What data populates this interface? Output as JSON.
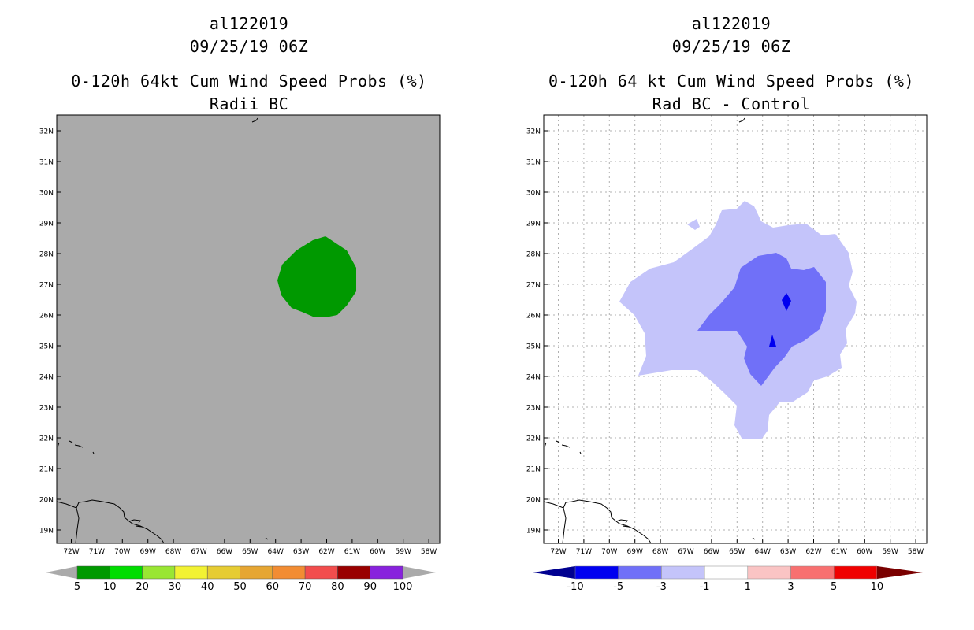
{
  "left_panel": {
    "storm_id": "al122019",
    "datetime": "09/25/19 06Z",
    "product": "0-120h 64kt Cum Wind Speed Probs (%)",
    "subtitle": "Radii BC",
    "background_color": "#aaaaaa",
    "colorbar": {
      "labels": [
        "5",
        "10",
        "20",
        "30",
        "40",
        "50",
        "60",
        "70",
        "80",
        "90",
        "100"
      ],
      "colors": [
        "#009900",
        "#00dd00",
        "#99e633",
        "#f2f233",
        "#e6cc33",
        "#e6a633",
        "#f28c33",
        "#f24d4d",
        "#990000",
        "#8822dd"
      ],
      "end_color": "#aaaaaa"
    }
  },
  "right_panel": {
    "storm_id": "al122019",
    "datetime": "09/25/19 06Z",
    "product": "0-120h 64 kt Cum Wind Speed Probs (%)",
    "subtitle": "Rad BC - Control",
    "colorbar": {
      "labels": [
        "-10",
        "-5",
        "-3",
        "-1",
        "1",
        "3",
        "5",
        "10"
      ],
      "colors": [
        "#0000f0",
        "#7070f8",
        "#c4c4fa",
        "#ffffff",
        "#fac4c4",
        "#f87070",
        "#f00000"
      ],
      "low_end_color": "#000090",
      "high_end_color": "#7a0000"
    }
  },
  "map": {
    "lat_labels": [
      "32N",
      "31N",
      "30N",
      "29N",
      "28N",
      "27N",
      "26N",
      "25N",
      "24N",
      "23N",
      "22N",
      "21N",
      "20N",
      "19N"
    ],
    "lon_labels": [
      "72W",
      "71W",
      "70W",
      "69W",
      "68W",
      "67W",
      "66W",
      "65W",
      "64W",
      "63W",
      "62W",
      "61W",
      "60W",
      "59W",
      "58W"
    ]
  }
}
